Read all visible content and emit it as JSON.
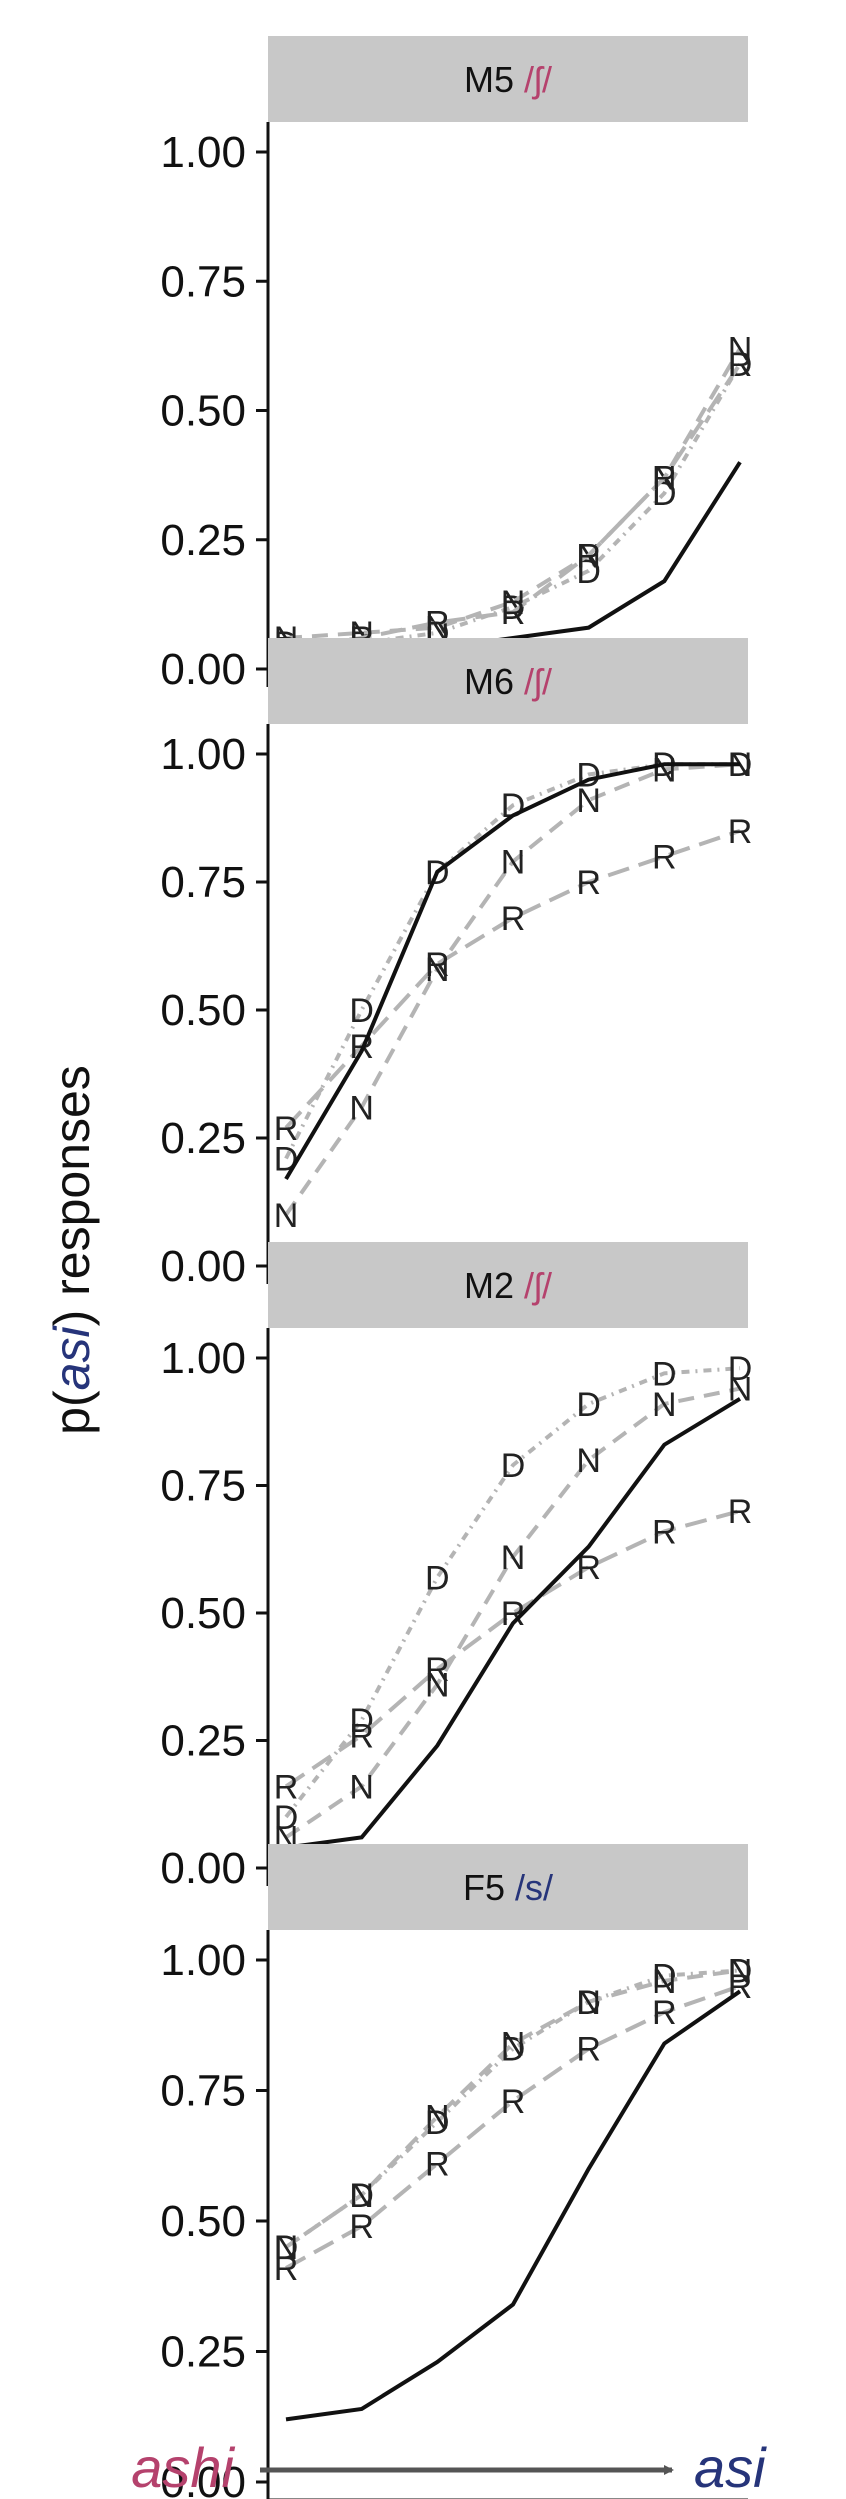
{
  "y_axis_label": {
    "prefix": "p(",
    "accent": "asi",
    "suffix": ") responses"
  },
  "colors": {
    "ashi": "#b5426d",
    "asi": "#26347a",
    "strip": "#c8c8c8",
    "solid": "#111111",
    "dashed": "#b4b4b4"
  },
  "x_axis": {
    "left_label": "ashi",
    "right_label": "asi",
    "arrow": "right-arrow"
  },
  "chart_data": [
    {
      "type": "line",
      "panel": "M5",
      "phoneme": "/ʃ/",
      "phoneme_color": "#b5426d",
      "x": [
        1,
        2,
        3,
        4,
        5,
        6,
        7
      ],
      "ylim": [
        0,
        1
      ],
      "yticks": [
        "0.00",
        "0.25",
        "0.50",
        "0.75",
        "1.00"
      ],
      "grid": false,
      "solid_values": [
        0.02,
        0.03,
        0.04,
        0.06,
        0.08,
        0.17,
        0.4
      ],
      "series": [
        {
          "name": "D",
          "values": [
            0.05,
            0.05,
            0.07,
            0.12,
            0.19,
            0.34,
            0.59
          ]
        },
        {
          "name": "N",
          "values": [
            0.06,
            0.07,
            0.08,
            0.13,
            0.22,
            0.37,
            0.62
          ]
        },
        {
          "name": "R",
          "values": [
            0.04,
            0.06,
            0.09,
            0.11,
            0.22,
            0.37,
            0.59
          ]
        }
      ]
    },
    {
      "type": "line",
      "panel": "M6",
      "phoneme": "/ʃ/",
      "phoneme_color": "#b5426d",
      "x": [
        1,
        2,
        3,
        4,
        5,
        6,
        7
      ],
      "ylim": [
        0,
        1
      ],
      "yticks": [
        "0.00",
        "0.25",
        "0.50",
        "0.75",
        "1.00"
      ],
      "grid": false,
      "solid_values": [
        0.17,
        0.42,
        0.77,
        0.88,
        0.95,
        0.98,
        0.98
      ],
      "series": [
        {
          "name": "D",
          "values": [
            0.21,
            0.5,
            0.77,
            0.9,
            0.96,
            0.98,
            0.98
          ]
        },
        {
          "name": "N",
          "values": [
            0.1,
            0.31,
            0.58,
            0.79,
            0.91,
            0.97,
            0.98
          ]
        },
        {
          "name": "R",
          "values": [
            0.27,
            0.43,
            0.59,
            0.68,
            0.75,
            0.8,
            0.85
          ]
        }
      ]
    },
    {
      "type": "line",
      "panel": "M2",
      "phoneme": "/ʃ/",
      "phoneme_color": "#b5426d",
      "x": [
        1,
        2,
        3,
        4,
        5,
        6,
        7
      ],
      "ylim": [
        0,
        1
      ],
      "yticks": [
        "0.00",
        "0.25",
        "0.50",
        "0.75",
        "1.00"
      ],
      "grid": false,
      "solid_values": [
        0.04,
        0.06,
        0.24,
        0.48,
        0.63,
        0.83,
        0.92
      ],
      "series": [
        {
          "name": "D",
          "values": [
            0.1,
            0.29,
            0.57,
            0.79,
            0.91,
            0.97,
            0.98
          ]
        },
        {
          "name": "N",
          "values": [
            0.06,
            0.16,
            0.36,
            0.61,
            0.8,
            0.91,
            0.94
          ]
        },
        {
          "name": "R",
          "values": [
            0.16,
            0.26,
            0.39,
            0.5,
            0.59,
            0.66,
            0.7
          ]
        }
      ]
    },
    {
      "type": "line",
      "panel": "F5",
      "phoneme": "/s/",
      "phoneme_color": "#26347a",
      "x": [
        1,
        2,
        3,
        4,
        5,
        6,
        7
      ],
      "ylim": [
        0,
        1
      ],
      "yticks": [
        "0.00",
        "0.25",
        "0.50",
        "0.75",
        "1.00"
      ],
      "grid": false,
      "solid_values": [
        0.12,
        0.14,
        0.23,
        0.34,
        0.6,
        0.84,
        0.94
      ],
      "series": [
        {
          "name": "D",
          "values": [
            0.45,
            0.55,
            0.69,
            0.83,
            0.92,
            0.97,
            0.98
          ]
        },
        {
          "name": "N",
          "values": [
            0.45,
            0.55,
            0.7,
            0.84,
            0.92,
            0.96,
            0.98
          ]
        },
        {
          "name": "R",
          "values": [
            0.41,
            0.49,
            0.61,
            0.73,
            0.83,
            0.9,
            0.95
          ]
        }
      ]
    }
  ]
}
